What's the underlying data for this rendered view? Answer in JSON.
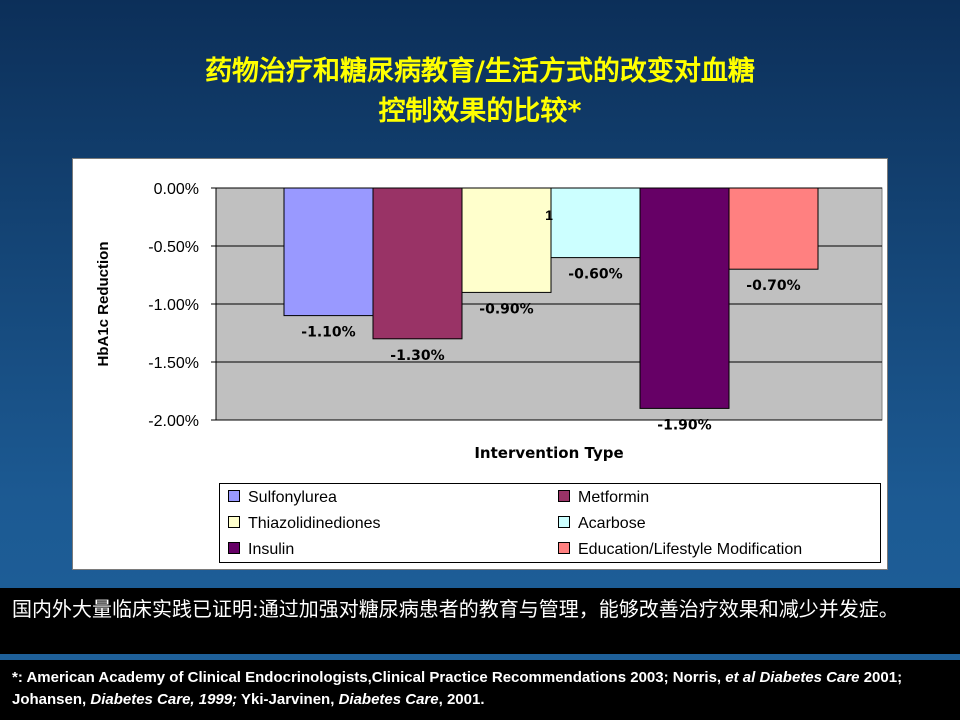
{
  "slide": {
    "title_line1": "药物治疗和糖尿病教育/生活方式的改变对血糖",
    "title_line2": "控制效果的比较*"
  },
  "chart_data": {
    "type": "bar",
    "title": "",
    "xlabel": "Intervention Type",
    "ylabel": "HbA1c Reduction",
    "ylim": [
      -2.0,
      0.0
    ],
    "yticks": [
      0.0,
      -0.5,
      -1.0,
      -1.5,
      -2.0
    ],
    "ytick_labels": [
      "0.00%",
      "-0.50%",
      "-1.00%",
      "-1.50%",
      "-2.00%"
    ],
    "grid": true,
    "legend_position": "bottom",
    "stray_label": "1",
    "series": [
      {
        "name": "Sulfonylurea",
        "value": -1.1,
        "label": "-1.10%",
        "color": "#9999ff"
      },
      {
        "name": "Metformin",
        "value": -1.3,
        "label": "-1.30%",
        "color": "#993366"
      },
      {
        "name": "Thiazolidinediones",
        "value": -0.9,
        "label": "-0.90%",
        "color": "#ffffcc"
      },
      {
        "name": "Acarbose",
        "value": -0.6,
        "label": "-0.60%",
        "color": "#ccffff"
      },
      {
        "name": "Insulin",
        "value": -1.9,
        "label": "-1.90%",
        "color": "#660066"
      },
      {
        "name": "Education/Lifestyle Modification",
        "value": -0.7,
        "label": "-0.70%",
        "color": "#ff8080"
      }
    ]
  },
  "note": {
    "text": "国内外大量临床实践已证明:通过加强对糖尿病患者的教育与管理，能够改善治疗效果和减少并发症。"
  },
  "references": {
    "p1": "*: American Academy of Clinical Endocrinologists,Clinical Practice Recommendations 2003; Norris, ",
    "p2": "et al",
    "p3": " ",
    "p4": "Diabetes Care",
    "p5": " 2001; Johansen, ",
    "p6": "Diabetes Care, 1999;",
    "p7": " Yki-Jarvinen, ",
    "p8": "Diabetes Care",
    "p9": ", 2001."
  }
}
